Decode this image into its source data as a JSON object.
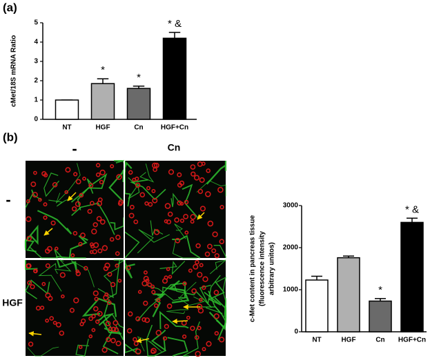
{
  "chart_data": [
    {
      "type": "bar",
      "panel_label": "(a)",
      "y_label": "cMet/18S mRNA Ratio",
      "categories": [
        "NT",
        "HGF",
        "Cn",
        "HGF+Cn"
      ],
      "values": [
        1,
        1.85,
        1.6,
        4.2
      ],
      "errors": [
        0,
        0.25,
        0.12,
        0.3
      ],
      "colors": [
        "#ffffff",
        "#b0b0b0",
        "#6a6a6a",
        "#000000"
      ],
      "annotations": [
        null,
        "*",
        "*",
        "* &"
      ],
      "ylim": [
        0,
        5
      ],
      "yticks": [
        0,
        1,
        2,
        3,
        4,
        5
      ]
    },
    {
      "type": "bar",
      "y_label": [
        "c-Met content in pancreas tissue",
        "(fluorescence intensity",
        "arbitrary unitos)"
      ],
      "categories": [
        "NT",
        "HGF",
        "Cn",
        "HGF+Cn"
      ],
      "values": [
        1230,
        1760,
        730,
        2600
      ],
      "errors": [
        90,
        40,
        60,
        100
      ],
      "colors": [
        "#ffffff",
        "#b0b0b0",
        "#6a6a6a",
        "#000000"
      ],
      "annotations": [
        null,
        null,
        "*",
        "* &"
      ],
      "ylim": [
        0,
        3000
      ],
      "yticks": [
        0,
        1000,
        2000,
        3000
      ]
    }
  ],
  "image_panel": {
    "label": "(b)",
    "column_labels": [
      "-",
      "Cn"
    ],
    "row_labels": [
      "-",
      "HGF"
    ]
  }
}
